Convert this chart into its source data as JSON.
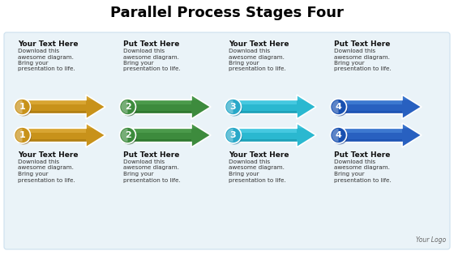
{
  "title": "Parallel Process Stages Four",
  "title_fontsize": 13,
  "background_color": "#ffffff",
  "panel_color": "#eaf3f8",
  "panel_edge_color": "#cce0ee",
  "top_headers": [
    "Your Text Here",
    "Put Text Here",
    "Your Text Here",
    "Put Text Here"
  ],
  "bottom_headers": [
    "Your Text Here",
    "Put Text Here",
    "Your Text Here",
    "Put Text Here"
  ],
  "body_text": "Download this\nawesome diagram.\nBring your\npresentation to life.",
  "numbers": [
    "1",
    "2",
    "3",
    "4"
  ],
  "arrow_face_colors": [
    "#c8921a",
    "#3d8b3d",
    "#2ab8d0",
    "#2860c0"
  ],
  "arrow_light_colors": [
    "#e8b84a",
    "#5aaa5a",
    "#60d8f0",
    "#5090e0"
  ],
  "arrow_dark_colors": [
    "#8a6008",
    "#1a5a1a",
    "#0a7a90",
    "#1040a0"
  ],
  "circle_colors": [
    "#c8921a",
    "#3d8b3d",
    "#28a8c8",
    "#1850b0"
  ],
  "circle_dark_colors": [
    "#906010",
    "#205a20",
    "#0878a0",
    "#103888"
  ],
  "logo_text": "Your Logo",
  "header_bold_fontsize": 6.5,
  "body_fontsize": 5.2,
  "number_fontsize": 8
}
